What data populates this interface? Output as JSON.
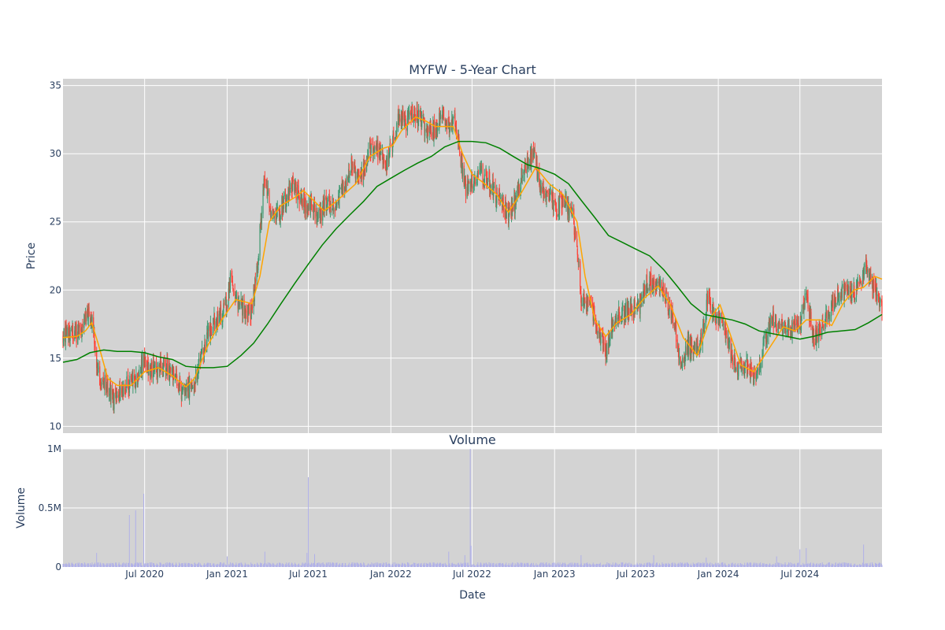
{
  "chart_data": [
    {
      "type": "candlestick",
      "title": "MYFW - 5-Year Chart",
      "xlabel": "",
      "ylabel": "Price",
      "ylim": [
        9.5,
        35.5
      ],
      "yticks": [
        10,
        15,
        20,
        25,
        30,
        35
      ],
      "grid": true,
      "legend": "none",
      "colors": {
        "up": "#3d9970",
        "down": "#ff4136",
        "ma_short": "#ffa500",
        "ma_long": "#008000",
        "background": "#d3d3d3",
        "grid": "#ffffff"
      },
      "x_range": [
        "2020-01-01",
        "2024-12-31"
      ],
      "anchors": [
        [
          "2020-01-01",
          16.8
        ],
        [
          "2020-02-01",
          16.7
        ],
        [
          "2020-02-25",
          18.5
        ],
        [
          "2020-03-08",
          17.5
        ],
        [
          "2020-03-15",
          14.5
        ],
        [
          "2020-03-25",
          13.5
        ],
        [
          "2020-04-10",
          13.0
        ],
        [
          "2020-04-25",
          11.8
        ],
        [
          "2020-05-10",
          12.8
        ],
        [
          "2020-06-01",
          13.2
        ],
        [
          "2020-06-15",
          13.5
        ],
        [
          "2020-06-28",
          15.0
        ],
        [
          "2020-07-10",
          14.0
        ],
        [
          "2020-07-25",
          14.2
        ],
        [
          "2020-08-10",
          14.7
        ],
        [
          "2020-08-25",
          14.0
        ],
        [
          "2020-09-10",
          13.5
        ],
        [
          "2020-09-25",
          12.2
        ],
        [
          "2020-10-15",
          13.2
        ],
        [
          "2020-11-01",
          14.5
        ],
        [
          "2020-11-20",
          17.0
        ],
        [
          "2020-12-15",
          18.2
        ],
        [
          "2021-01-01",
          19.0
        ],
        [
          "2021-01-10",
          21.5
        ],
        [
          "2021-01-20",
          19.5
        ],
        [
          "2021-02-10",
          18.5
        ],
        [
          "2021-02-25",
          18.5
        ],
        [
          "2021-03-10",
          22.0
        ],
        [
          "2021-03-25",
          28.5
        ],
        [
          "2021-04-10",
          25.5
        ],
        [
          "2021-04-25",
          25.8
        ],
        [
          "2021-05-10",
          26.5
        ],
        [
          "2021-05-25",
          27.8
        ],
        [
          "2021-06-10",
          27.0
        ],
        [
          "2021-06-25",
          26.2
        ],
        [
          "2021-07-10",
          26.5
        ],
        [
          "2021-07-20",
          25.0
        ],
        [
          "2021-08-10",
          26.5
        ],
        [
          "2021-08-25",
          26.0
        ],
        [
          "2021-09-15",
          27.2
        ],
        [
          "2021-10-05",
          29.2
        ],
        [
          "2021-10-25",
          28.0
        ],
        [
          "2021-11-15",
          30.5
        ],
        [
          "2021-12-05",
          30.2
        ],
        [
          "2021-12-20",
          29.0
        ],
        [
          "2022-01-05",
          31.0
        ],
        [
          "2022-01-20",
          32.8
        ],
        [
          "2022-02-05",
          32.2
        ],
        [
          "2022-02-20",
          33.0
        ],
        [
          "2022-03-10",
          32.5
        ],
        [
          "2022-03-25",
          31.5
        ],
        [
          "2022-04-10",
          31.8
        ],
        [
          "2022-04-25",
          32.8
        ],
        [
          "2022-05-10",
          32.0
        ],
        [
          "2022-05-25",
          32.5
        ],
        [
          "2022-06-05",
          30.0
        ],
        [
          "2022-06-15",
          27.5
        ],
        [
          "2022-07-01",
          28.0
        ],
        [
          "2022-07-20",
          28.5
        ],
        [
          "2022-08-05",
          28.3
        ],
        [
          "2022-08-20",
          27.0
        ],
        [
          "2022-09-05",
          26.5
        ],
        [
          "2022-09-20",
          25.5
        ],
        [
          "2022-10-05",
          26.5
        ],
        [
          "2022-10-20",
          28.5
        ],
        [
          "2022-11-05",
          29.5
        ],
        [
          "2022-11-15",
          30.0
        ],
        [
          "2022-12-01",
          27.5
        ],
        [
          "2022-12-20",
          27.0
        ],
        [
          "2023-01-05",
          26.0
        ],
        [
          "2023-01-20",
          26.5
        ],
        [
          "2023-02-10",
          25.5
        ],
        [
          "2023-02-20",
          23.5
        ],
        [
          "2023-03-01",
          19.5
        ],
        [
          "2023-03-15",
          19.0
        ],
        [
          "2023-04-01",
          18.0
        ],
        [
          "2023-04-15",
          16.5
        ],
        [
          "2023-04-25",
          15.5
        ],
        [
          "2023-05-10",
          17.5
        ],
        [
          "2023-05-25",
          18.2
        ],
        [
          "2023-06-10",
          18.5
        ],
        [
          "2023-06-25",
          18.5
        ],
        [
          "2023-07-10",
          19.0
        ],
        [
          "2023-07-25",
          20.5
        ],
        [
          "2023-08-10",
          20.5
        ],
        [
          "2023-08-25",
          20.0
        ],
        [
          "2023-09-10",
          19.2
        ],
        [
          "2023-09-25",
          17.5
        ],
        [
          "2023-10-10",
          14.0
        ],
        [
          "2023-10-25",
          16.0
        ],
        [
          "2023-11-10",
          15.5
        ],
        [
          "2023-11-25",
          16.5
        ],
        [
          "2023-12-10",
          19.5
        ],
        [
          "2023-12-25",
          18.0
        ],
        [
          "2024-01-10",
          17.8
        ],
        [
          "2024-01-25",
          16.0
        ],
        [
          "2024-02-10",
          14.2
        ],
        [
          "2024-02-25",
          14.5
        ],
        [
          "2024-03-15",
          14.0
        ],
        [
          "2024-03-30",
          13.8
        ],
        [
          "2024-04-15",
          16.5
        ],
        [
          "2024-05-01",
          18.0
        ],
        [
          "2024-05-15",
          17.0
        ],
        [
          "2024-06-01",
          17.0
        ],
        [
          "2024-06-15",
          17.3
        ],
        [
          "2024-07-01",
          17.5
        ],
        [
          "2024-07-15",
          19.5
        ],
        [
          "2024-08-01",
          16.5
        ],
        [
          "2024-08-20",
          17.5
        ],
        [
          "2024-09-05",
          18.5
        ],
        [
          "2024-09-25",
          19.5
        ],
        [
          "2024-10-10",
          20.0
        ],
        [
          "2024-10-25",
          19.5
        ],
        [
          "2024-11-10",
          20.5
        ],
        [
          "2024-11-25",
          22.0
        ],
        [
          "2024-12-10",
          20.5
        ],
        [
          "2024-12-31",
          19.0
        ]
      ],
      "ma_short": [
        [
          "2020-01-01",
          16.5
        ],
        [
          "2020-02-01",
          16.6
        ],
        [
          "2020-02-20",
          17.0
        ],
        [
          "2020-03-05",
          17.6
        ],
        [
          "2020-03-20",
          16.0
        ],
        [
          "2020-04-10",
          13.5
        ],
        [
          "2020-05-01",
          13.0
        ],
        [
          "2020-06-01",
          13.0
        ],
        [
          "2020-07-01",
          14.0
        ],
        [
          "2020-08-01",
          14.3
        ],
        [
          "2020-09-01",
          13.7
        ],
        [
          "2020-10-01",
          12.9
        ],
        [
          "2020-10-20",
          13.5
        ],
        [
          "2020-11-20",
          16.0
        ],
        [
          "2020-12-20",
          17.8
        ],
        [
          "2021-01-20",
          19.3
        ],
        [
          "2021-02-25",
          19.0
        ],
        [
          "2021-03-15",
          21.0
        ],
        [
          "2021-04-05",
          25.0
        ],
        [
          "2021-05-01",
          26.2
        ],
        [
          "2021-06-01",
          26.8
        ],
        [
          "2021-06-20",
          27.3
        ],
        [
          "2021-07-15",
          26.5
        ],
        [
          "2021-08-05",
          25.8
        ],
        [
          "2021-09-01",
          26.5
        ],
        [
          "2021-10-15",
          27.8
        ],
        [
          "2021-11-15",
          29.8
        ],
        [
          "2021-12-15",
          30.4
        ],
        [
          "2022-01-05",
          30.6
        ],
        [
          "2022-01-25",
          31.7
        ],
        [
          "2022-02-25",
          32.7
        ],
        [
          "2022-03-20",
          32.4
        ],
        [
          "2022-04-10",
          32.0
        ],
        [
          "2022-05-20",
          32.0
        ],
        [
          "2022-06-10",
          30.0
        ],
        [
          "2022-07-01",
          28.5
        ],
        [
          "2022-07-25",
          27.9
        ],
        [
          "2022-08-25",
          27.0
        ],
        [
          "2022-09-20",
          25.7
        ],
        [
          "2022-10-20",
          27.2
        ],
        [
          "2022-11-20",
          29.0
        ],
        [
          "2022-12-20",
          27.8
        ],
        [
          "2023-01-20",
          27.0
        ],
        [
          "2023-02-20",
          25.0
        ],
        [
          "2023-03-10",
          21.0
        ],
        [
          "2023-04-01",
          17.8
        ],
        [
          "2023-04-25",
          16.6
        ],
        [
          "2023-05-20",
          17.6
        ],
        [
          "2023-06-20",
          18.2
        ],
        [
          "2023-07-20",
          19.4
        ],
        [
          "2023-08-20",
          20.3
        ],
        [
          "2023-09-15",
          19.0
        ],
        [
          "2023-10-15",
          16.5
        ],
        [
          "2023-11-15",
          15.2
        ],
        [
          "2023-12-15",
          18.0
        ],
        [
          "2024-01-05",
          18.9
        ],
        [
          "2024-01-25",
          17.0
        ],
        [
          "2024-02-20",
          14.5
        ],
        [
          "2024-03-20",
          14.0
        ],
        [
          "2024-04-25",
          15.8
        ],
        [
          "2024-05-25",
          17.3
        ],
        [
          "2024-06-20",
          17.0
        ],
        [
          "2024-07-15",
          17.8
        ],
        [
          "2024-08-15",
          17.8
        ],
        [
          "2024-09-10",
          17.4
        ],
        [
          "2024-10-05",
          19.0
        ],
        [
          "2024-10-30",
          20.0
        ],
        [
          "2024-11-20",
          20.2
        ],
        [
          "2024-12-15",
          21.0
        ],
        [
          "2024-12-31",
          20.8
        ]
      ],
      "ma_long": [
        [
          "2020-01-01",
          14.7
        ],
        [
          "2020-02-01",
          14.9
        ],
        [
          "2020-03-01",
          15.4
        ],
        [
          "2020-04-01",
          15.6
        ],
        [
          "2020-05-01",
          15.5
        ],
        [
          "2020-06-01",
          15.5
        ],
        [
          "2020-07-01",
          15.4
        ],
        [
          "2020-08-01",
          15.1
        ],
        [
          "2020-09-01",
          14.9
        ],
        [
          "2020-10-01",
          14.4
        ],
        [
          "2020-11-01",
          14.3
        ],
        [
          "2020-12-01",
          14.3
        ],
        [
          "2021-01-01",
          14.4
        ],
        [
          "2021-02-01",
          15.2
        ],
        [
          "2021-03-01",
          16.1
        ],
        [
          "2021-04-01",
          17.5
        ],
        [
          "2021-05-01",
          19.0
        ],
        [
          "2021-06-01",
          20.5
        ],
        [
          "2021-07-01",
          21.9
        ],
        [
          "2021-08-01",
          23.3
        ],
        [
          "2021-09-01",
          24.5
        ],
        [
          "2021-10-01",
          25.5
        ],
        [
          "2021-11-01",
          26.5
        ],
        [
          "2021-12-01",
          27.6
        ],
        [
          "2022-01-01",
          28.2
        ],
        [
          "2022-02-01",
          28.8
        ],
        [
          "2022-03-01",
          29.3
        ],
        [
          "2022-04-01",
          29.8
        ],
        [
          "2022-05-01",
          30.5
        ],
        [
          "2022-06-01",
          30.9
        ],
        [
          "2022-07-01",
          30.9
        ],
        [
          "2022-08-01",
          30.8
        ],
        [
          "2022-09-01",
          30.4
        ],
        [
          "2022-10-01",
          29.8
        ],
        [
          "2022-11-01",
          29.2
        ],
        [
          "2022-12-01",
          28.9
        ],
        [
          "2023-01-01",
          28.5
        ],
        [
          "2023-02-01",
          27.8
        ],
        [
          "2023-03-01",
          26.6
        ],
        [
          "2023-04-01",
          25.3
        ],
        [
          "2023-05-01",
          24.0
        ],
        [
          "2023-06-01",
          23.5
        ],
        [
          "2023-07-01",
          23.0
        ],
        [
          "2023-08-01",
          22.5
        ],
        [
          "2023-09-01",
          21.5
        ],
        [
          "2023-10-01",
          20.3
        ],
        [
          "2023-11-01",
          19.0
        ],
        [
          "2023-12-01",
          18.2
        ],
        [
          "2024-01-01",
          18.0
        ],
        [
          "2024-02-01",
          17.8
        ],
        [
          "2024-03-01",
          17.5
        ],
        [
          "2024-04-01",
          17.0
        ],
        [
          "2024-05-01",
          16.8
        ],
        [
          "2024-06-01",
          16.6
        ],
        [
          "2024-07-01",
          16.4
        ],
        [
          "2024-08-01",
          16.6
        ],
        [
          "2024-09-01",
          16.9
        ],
        [
          "2024-10-01",
          17.0
        ],
        [
          "2024-11-01",
          17.1
        ],
        [
          "2024-12-01",
          17.6
        ],
        [
          "2024-12-31",
          18.2
        ]
      ]
    },
    {
      "type": "bar",
      "title": "Volume",
      "xlabel": "Date",
      "ylabel": "Volume",
      "ylim": [
        0,
        1000000
      ],
      "yticks": [
        0,
        500000,
        1000000
      ],
      "ytick_labels": [
        "0",
        "0.5M",
        "1M"
      ],
      "xticks": [
        "2020-07-01",
        "2021-01-01",
        "2021-07-01",
        "2022-01-01",
        "2022-07-01",
        "2023-01-01",
        "2023-07-01",
        "2024-01-01",
        "2024-07-01"
      ],
      "xtick_labels": [
        "Jul 2020",
        "Jan 2021",
        "Jul 2021",
        "Jan 2022",
        "Jul 2022",
        "Jan 2023",
        "Jul 2023",
        "Jan 2024",
        "Jul 2024"
      ],
      "grid": true,
      "colors": {
        "bar": "#b0b0e8",
        "background": "#d3d3d3",
        "grid": "#ffffff"
      },
      "baseline_volume": [
        10000,
        40000
      ],
      "spikes": [
        [
          "2020-03-16",
          120000
        ],
        [
          "2020-05-28",
          440000
        ],
        [
          "2020-06-11",
          480000
        ],
        [
          "2020-06-29",
          620000
        ],
        [
          "2021-01-01",
          90000
        ],
        [
          "2021-03-26",
          130000
        ],
        [
          "2021-06-28",
          120000
        ],
        [
          "2021-07-01",
          760000
        ],
        [
          "2021-07-15",
          110000
        ],
        [
          "2022-05-10",
          130000
        ],
        [
          "2022-06-15",
          100000
        ],
        [
          "2022-06-27",
          1000000
        ],
        [
          "2022-06-29",
          180000
        ],
        [
          "2023-03-01",
          100000
        ],
        [
          "2023-07-15",
          110000
        ],
        [
          "2023-08-10",
          100000
        ],
        [
          "2023-12-05",
          80000
        ],
        [
          "2024-05-10",
          90000
        ],
        [
          "2024-07-01",
          150000
        ],
        [
          "2024-07-15",
          160000
        ],
        [
          "2024-11-20",
          190000
        ]
      ]
    }
  ]
}
